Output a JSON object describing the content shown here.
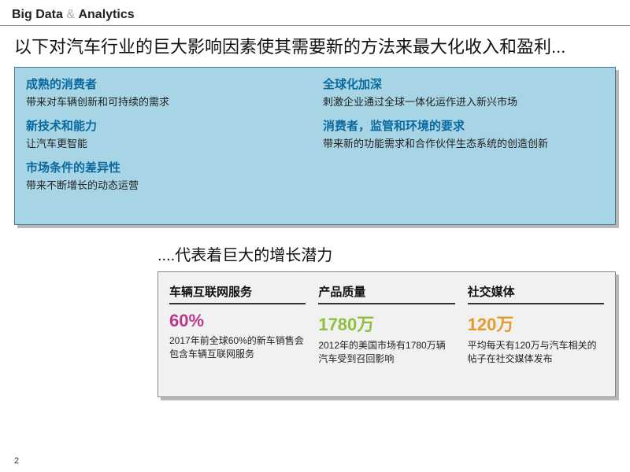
{
  "header": {
    "brand_pre": "Big Data",
    "brand_amp": " & ",
    "brand_post": "Analytics"
  },
  "title": "以下对汽车行业的巨大影响因素使其需要新的方法来最大化收入和盈利...",
  "factors": {
    "left": [
      {
        "h": "成熟的消费者",
        "d": "带来对车辆创新和可持续的需求"
      },
      {
        "h": "新技术和能力",
        "d": "让汽车更智能"
      },
      {
        "h": "市场条件的差异性",
        "d": "带来不断增长的动态运营"
      }
    ],
    "right": [
      {
        "h": "全球化加深",
        "d": "刺激企业通过全球一体化运作进入新兴市场"
      },
      {
        "h": "消费者，监管和环境的要求",
        "d": "带来新的功能需求和合作伙伴生态系统的创造创新"
      }
    ]
  },
  "subtitle": "....代表着巨大的增长潜力",
  "stats": [
    {
      "h": "车辆互联网服务",
      "v": "60%",
      "color": "#b83a8a",
      "d": "2017年前全球60%的新车销售会包含车辆互联网服务"
    },
    {
      "h": "产品质量",
      "v": "1780万",
      "color": "#8fbf3f",
      "d": "2012年的美国市场有1780万辆汽车受到召回影响"
    },
    {
      "h": "社交媒体",
      "v": "120万",
      "color": "#e69a2e",
      "d": "平均每天有120万与汽车相关的帖子在社交媒体发布"
    }
  ],
  "page": "2",
  "colors": {
    "top_box_bg": "#a8d5e5",
    "top_box_border": "#4a7a8a",
    "heading_blue": "#0a6aa0",
    "bottom_box_bg": "#f1f1f1",
    "shadow": "#b8b8b8"
  }
}
